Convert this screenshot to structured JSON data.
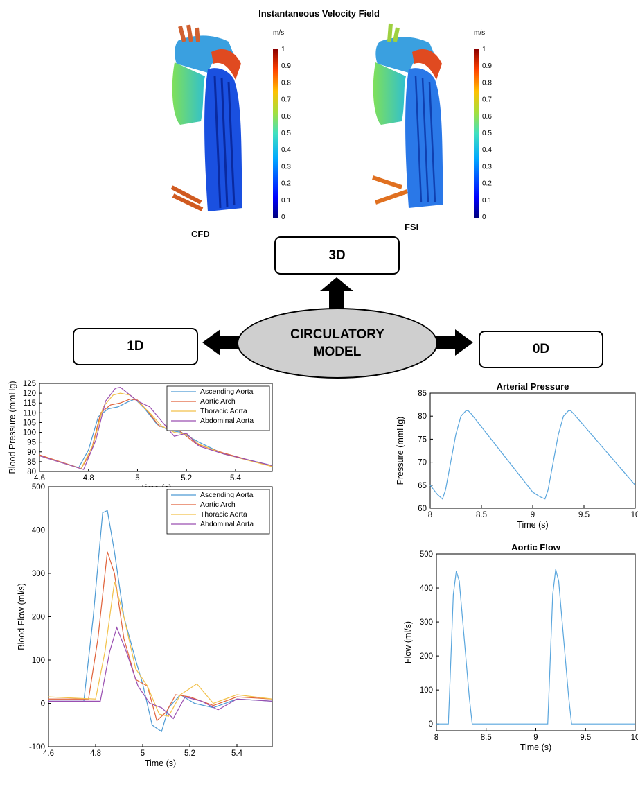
{
  "header": {
    "title": "Instantaneous Velocity Field"
  },
  "render3d": {
    "cfd_label": "CFD",
    "fsi_label": "FSI",
    "colorbar_unit": "m/s",
    "colorbar_ticks": [
      "1",
      "0.9",
      "0.8",
      "0.7",
      "0.6",
      "0.5",
      "0.4",
      "0.3",
      "0.2",
      "0.1",
      "0"
    ]
  },
  "diagram": {
    "box_3d": "3D",
    "box_1d": "1D",
    "box_0d": "0D",
    "center_line1": "CIRCULATORY",
    "center_line2": "MODEL"
  },
  "colors": {
    "ascending": "#4e9bd4",
    "arch": "#e0623a",
    "thoracic": "#f2c14a",
    "abdominal": "#9a4fb1",
    "zero_d": "#5aa6dd"
  },
  "chart_data": [
    {
      "type": "line",
      "title": "",
      "xlabel": "Time (s)",
      "ylabel": "Blood Pressure (mmHg)",
      "xlim": [
        4.6,
        5.55
      ],
      "ylim": [
        80,
        125
      ],
      "xticks": [
        "4.6",
        "4.8",
        "5",
        "5.2",
        "5.4"
      ],
      "yticks": [
        "80",
        "85",
        "90",
        "95",
        "100",
        "105",
        "110",
        "115",
        "120",
        "125"
      ],
      "legend_position": "top-right",
      "series": [
        {
          "name": "Ascending Aorta",
          "x": [
            4.6,
            4.76,
            4.8,
            4.84,
            4.88,
            4.92,
            4.96,
            4.99,
            5.03,
            5.08,
            5.13,
            5.18,
            5.25,
            5.35,
            5.55
          ],
          "y": [
            88,
            82,
            91,
            108,
            112,
            113,
            115.5,
            117,
            112,
            104,
            101,
            100,
            95,
            89,
            83
          ]
        },
        {
          "name": "Aortic Arch",
          "x": [
            4.6,
            4.77,
            4.81,
            4.85,
            4.89,
            4.93,
            4.97,
            5.0,
            5.04,
            5.09,
            5.14,
            5.18,
            5.24,
            5.35,
            5.55
          ],
          "y": [
            88.5,
            81.5,
            90,
            110,
            114,
            115,
            117,
            116.5,
            111,
            103,
            103.5,
            100,
            94,
            89.5,
            82.5
          ]
        },
        {
          "name": "Thoracic Aorta",
          "x": [
            4.6,
            4.77,
            4.82,
            4.86,
            4.9,
            4.93,
            4.97,
            5.0,
            5.05,
            5.1,
            5.15,
            5.2,
            5.25,
            5.35,
            5.55
          ],
          "y": [
            88,
            81.5,
            94,
            113,
            119,
            120,
            119,
            116,
            110,
            103,
            100,
            99,
            94,
            89,
            82.5
          ]
        },
        {
          "name": "Abdominal Aorta",
          "x": [
            4.6,
            4.78,
            4.83,
            4.87,
            4.91,
            4.93,
            4.96,
            5.0,
            5.05,
            5.11,
            5.15,
            5.2,
            5.25,
            5.35,
            5.55
          ],
          "y": [
            88,
            81,
            96,
            116,
            122.5,
            123,
            120,
            116,
            113,
            104,
            98,
            99.5,
            93,
            89,
            83
          ]
        }
      ]
    },
    {
      "type": "line",
      "title": "",
      "xlabel": "Time (s)",
      "ylabel": "Blood Flow (ml/s)",
      "xlim": [
        4.6,
        5.55
      ],
      "ylim": [
        -100,
        500
      ],
      "xticks": [
        "4.6",
        "4.8",
        "5",
        "5.2",
        "5.4"
      ],
      "yticks": [
        "-100",
        "0",
        "100",
        "200",
        "300",
        "400",
        "500"
      ],
      "legend_position": "top-right",
      "series": [
        {
          "name": "Ascending Aorta",
          "x": [
            4.6,
            4.75,
            4.79,
            4.83,
            4.85,
            4.88,
            4.92,
            4.97,
            5.0,
            5.04,
            5.08,
            5.11,
            5.16,
            5.22,
            5.3,
            5.4,
            5.55
          ],
          "y": [
            5,
            5,
            200,
            440,
            445,
            350,
            200,
            100,
            45,
            -50,
            -65,
            -10,
            20,
            0,
            -10,
            10,
            5
          ]
        },
        {
          "name": "Aortic Arch",
          "x": [
            4.6,
            4.77,
            4.81,
            4.85,
            4.88,
            4.92,
            4.97,
            5.02,
            5.06,
            5.1,
            5.14,
            5.2,
            5.3,
            5.4,
            5.55
          ],
          "y": [
            10,
            10,
            150,
            350,
            300,
            150,
            55,
            40,
            -40,
            -20,
            20,
            15,
            -5,
            15,
            10
          ]
        },
        {
          "name": "Thoracic Aorta",
          "x": [
            4.6,
            4.8,
            4.84,
            4.88,
            4.92,
            4.97,
            5.02,
            5.07,
            5.11,
            5.16,
            5.23,
            5.3,
            5.4,
            5.55
          ],
          "y": [
            15,
            10,
            120,
            280,
            200,
            80,
            40,
            -25,
            -30,
            20,
            45,
            0,
            20,
            10
          ]
        },
        {
          "name": "Abdominal Aorta",
          "x": [
            4.6,
            4.82,
            4.86,
            4.89,
            4.93,
            4.98,
            5.03,
            5.08,
            5.13,
            5.18,
            5.25,
            5.32,
            5.4,
            5.55
          ],
          "y": [
            5,
            5,
            120,
            175,
            120,
            40,
            0,
            -10,
            -35,
            15,
            5,
            -15,
            10,
            5
          ]
        }
      ]
    },
    {
      "type": "line",
      "title": "Arterial Pressure",
      "xlabel": "Time (s)",
      "ylabel": "Pressure (mmHg)",
      "xlim": [
        8,
        10
      ],
      "ylim": [
        60,
        85
      ],
      "xticks": [
        "8",
        "8.5",
        "9",
        "9.5",
        "10"
      ],
      "yticks": [
        "60",
        "65",
        "70",
        "75",
        "80",
        "85"
      ],
      "series": [
        {
          "name": "",
          "x": [
            8,
            8.07,
            8.12,
            8.15,
            8.2,
            8.25,
            8.3,
            8.35,
            8.37,
            8.4,
            9.0,
            9.07,
            9.12,
            9.15,
            9.2,
            9.25,
            9.3,
            9.35,
            9.37,
            9.4,
            10
          ],
          "y": [
            65,
            63,
            62,
            64,
            70,
            76,
            80,
            81.2,
            81.2,
            80.5,
            63.5,
            62.5,
            62,
            64,
            70,
            76,
            80,
            81.2,
            81.2,
            80.5,
            65
          ]
        }
      ]
    },
    {
      "type": "line",
      "title": "Aortic Flow",
      "xlabel": "Time (s)",
      "ylabel": "Flow (ml/s)",
      "xlim": [
        8,
        10
      ],
      "ylim": [
        -20,
        500
      ],
      "xticks": [
        "8",
        "8.5",
        "9",
        "9.5",
        "10"
      ],
      "yticks": [
        "0",
        "100",
        "200",
        "300",
        "400",
        "500"
      ],
      "series": [
        {
          "name": "",
          "x": [
            8,
            8.12,
            8.14,
            8.17,
            8.2,
            8.23,
            8.28,
            8.33,
            8.36,
            9.0,
            9.12,
            9.14,
            9.17,
            9.2,
            9.23,
            9.28,
            9.33,
            9.36,
            10
          ],
          "y": [
            0,
            0,
            150,
            380,
            450,
            420,
            250,
            80,
            0,
            0,
            0,
            150,
            380,
            455,
            420,
            250,
            80,
            0,
            0
          ]
        }
      ]
    }
  ]
}
